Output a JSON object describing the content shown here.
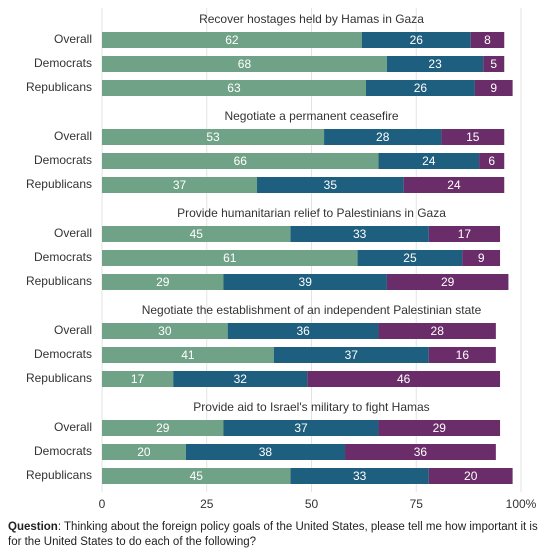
{
  "chart_data": {
    "type": "bar",
    "orientation": "horizontal",
    "stacked": true,
    "xlim": [
      0,
      100
    ],
    "xticks": [
      0,
      25,
      50,
      75,
      {
        "value": 100,
        "label": "100%"
      }
    ],
    "grid": true,
    "series_colors": [
      "#6fa287",
      "#1e5e7e",
      "#6a2d69"
    ],
    "panels": [
      {
        "title": "Recover hostages held by Hamas in Gaza",
        "categories": [
          "Overall",
          "Democrats",
          "Republicans"
        ],
        "series": [
          {
            "values": [
              62,
              68,
              63
            ]
          },
          {
            "values": [
              26,
              23,
              26
            ]
          },
          {
            "values": [
              8,
              5,
              9
            ]
          }
        ]
      },
      {
        "title": "Negotiate a permanent ceasefire",
        "categories": [
          "Overall",
          "Democrats",
          "Republicans"
        ],
        "series": [
          {
            "values": [
              53,
              66,
              37
            ]
          },
          {
            "values": [
              28,
              24,
              35
            ]
          },
          {
            "values": [
              15,
              6,
              24
            ]
          }
        ]
      },
      {
        "title": "Provide humanitarian relief to Palestinians in Gaza",
        "categories": [
          "Overall",
          "Democrats",
          "Republicans"
        ],
        "series": [
          {
            "values": [
              45,
              61,
              29
            ]
          },
          {
            "values": [
              33,
              25,
              39
            ]
          },
          {
            "values": [
              17,
              9,
              29
            ]
          }
        ]
      },
      {
        "title": "Negotiate the establishment of an independent Palestinian state",
        "categories": [
          "Overall",
          "Democrats",
          "Republicans"
        ],
        "series": [
          {
            "values": [
              30,
              41,
              17
            ]
          },
          {
            "values": [
              36,
              37,
              32
            ]
          },
          {
            "values": [
              28,
              16,
              46
            ]
          }
        ]
      },
      {
        "title": "Provide aid to Israel's military to fight Hamas",
        "categories": [
          "Overall",
          "Democrats",
          "Republicans"
        ],
        "series": [
          {
            "values": [
              29,
              20,
              45
            ]
          },
          {
            "values": [
              37,
              38,
              33
            ]
          },
          {
            "values": [
              29,
              36,
              20
            ]
          }
        ]
      }
    ],
    "caption": [
      {
        "text": "Question",
        "bold": true
      },
      {
        "text": ": Thinking about the foreign policy goals of the United States, please tell me how important it is for the United States to do each of the following?"
      }
    ]
  }
}
